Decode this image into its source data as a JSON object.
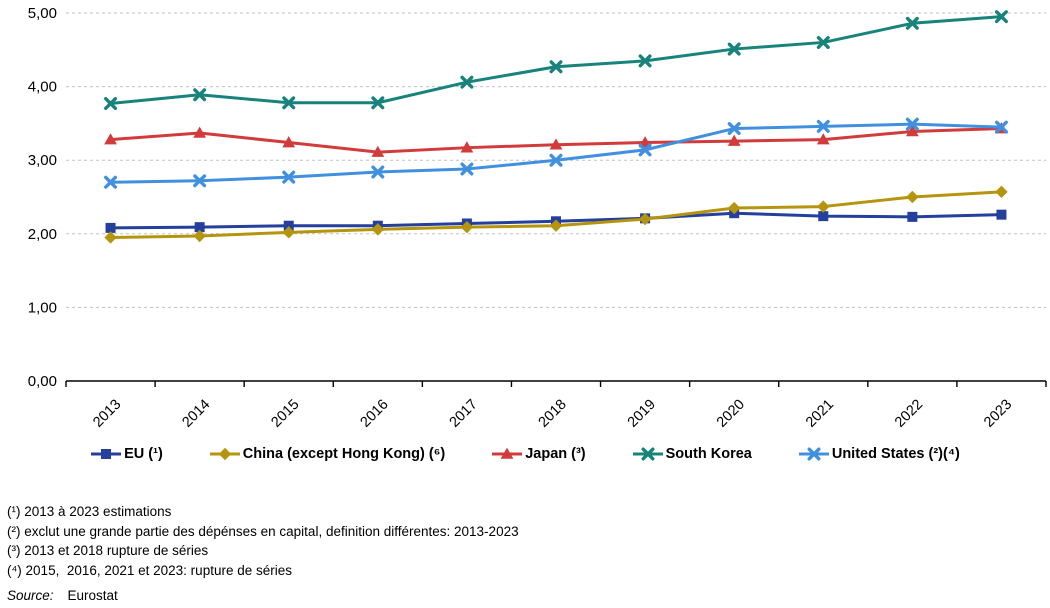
{
  "chart_data": {
    "type": "line",
    "title": "",
    "xlabel": "",
    "ylabel": "",
    "categories": [
      "2013",
      "2014",
      "2015",
      "2016",
      "2017",
      "2018",
      "2019",
      "2020",
      "2021",
      "2022",
      "2023"
    ],
    "series": [
      {
        "name": "EU (¹)",
        "marker": "square",
        "color": "#243F9C",
        "values": [
          2.08,
          2.09,
          2.11,
          2.11,
          2.14,
          2.17,
          2.21,
          2.28,
          2.24,
          2.23,
          2.26
        ]
      },
      {
        "name": "China (except Hong Kong) (⁶)",
        "marker": "diamond",
        "color": "#B6950E",
        "values": [
          1.95,
          1.97,
          2.02,
          2.06,
          2.09,
          2.11,
          2.2,
          2.35,
          2.37,
          2.5,
          2.57
        ]
      },
      {
        "name": "Japan (³)",
        "marker": "triangle",
        "color": "#D23B3B",
        "values": [
          3.28,
          3.37,
          3.24,
          3.11,
          3.17,
          3.21,
          3.24,
          3.26,
          3.28,
          3.39,
          3.43
        ]
      },
      {
        "name": "South Korea",
        "marker": "x",
        "color": "#17837A",
        "values": [
          3.77,
          3.89,
          3.78,
          3.78,
          4.06,
          4.27,
          4.35,
          4.51,
          4.6,
          4.86,
          4.95
        ]
      },
      {
        "name": "United States (²)(⁴)",
        "marker": "x",
        "color": "#4190E0",
        "values": [
          2.7,
          2.72,
          2.77,
          2.84,
          2.88,
          3.0,
          3.14,
          3.43,
          3.46,
          3.49,
          3.45
        ]
      }
    ],
    "ylim": [
      0,
      5
    ],
    "y_tick_labels": [
      "0,00",
      "1,00",
      "2,00",
      "3,00",
      "4,00",
      "5,00"
    ],
    "grid": "horizontal-dashed",
    "legend_position": "bottom"
  },
  "footnotes": {
    "lines": [
      "(¹) 2013 à 2023 estimations",
      "(²) exclut une grande partie des dépénses en capital, definition différentes: 2013-2023",
      "(³) 2013 et 2018 rupture de séries",
      "(⁴) 2015,  2016, 2021 et 2023: rupture de séries"
    ],
    "source_label": "Source:",
    "source_value": "Eurostat"
  }
}
